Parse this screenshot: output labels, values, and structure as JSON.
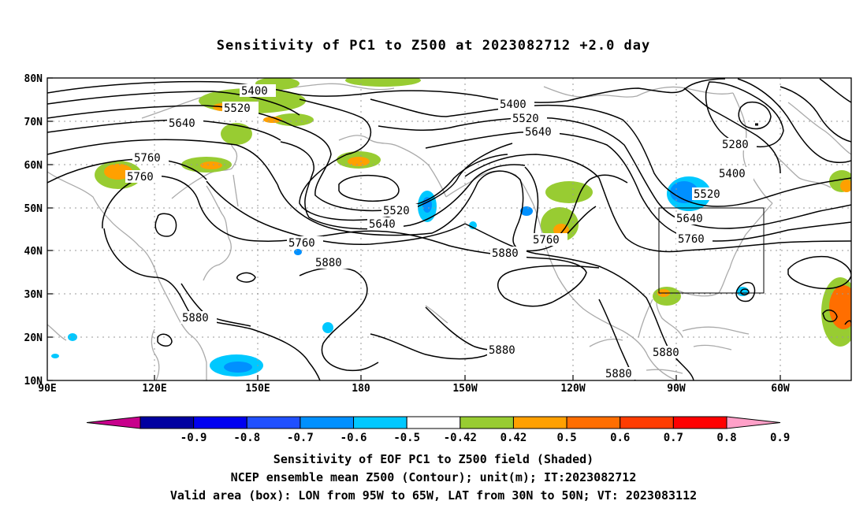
{
  "title": "Sensitivity of PC1 to Z500 at 2023082712 +2.0 day",
  "lat_labels": [
    "80N",
    "70N",
    "60N",
    "50N",
    "40N",
    "30N",
    "20N",
    "10N"
  ],
  "lon_labels": [
    "90E",
    "120E",
    "150E",
    "180",
    "150W",
    "120W",
    "90W",
    "60W"
  ],
  "contour_labels": {
    "c5400a": "5400",
    "c5520a": "5520",
    "c5640a": "5640",
    "c5760a": "5760",
    "c5760b": "5760",
    "c5400b": "5400",
    "c5520b": "5520",
    "c5640b": "5640",
    "c5520c": "5520",
    "c5640c": "5640",
    "c5760c": "5760",
    "c5880a": "5880",
    "c5880b": "5880",
    "c5760d": "5760",
    "c5280": "5280",
    "c5400c": "5400",
    "c5520d": "5520",
    "c5640d": "5640",
    "c5760e": "5760",
    "c5880c": "5880",
    "c5880d": "5880",
    "c5880e": "5880",
    "c5880f": "5880"
  },
  "colorbar": {
    "labels": [
      "-0.9",
      "-0.8",
      "-0.7",
      "-0.6",
      "-0.5",
      "-0.42",
      "0.42",
      "0.5",
      "0.6",
      "0.7",
      "0.8",
      "0.9"
    ],
    "colors": [
      "#c8008c",
      "#0000a0",
      "#0000f0",
      "#2050ff",
      "#0090ff",
      "#00c8ff",
      "#ffffff",
      "#98cc32",
      "#ffa000",
      "#ff6e00",
      "#ff3c00",
      "#ff0000",
      "#ffa0c8"
    ]
  },
  "captions": {
    "line1": "Sensitivity of EOF PC1 to Z500 field (Shaded)",
    "line2": "NCEP ensemble mean Z500 (Contour); unit(m); IT:2023082712",
    "line3": "Valid area (box): LON from 95W to 65W, LAT from 30N to 50N; VT: 2023083112"
  }
}
